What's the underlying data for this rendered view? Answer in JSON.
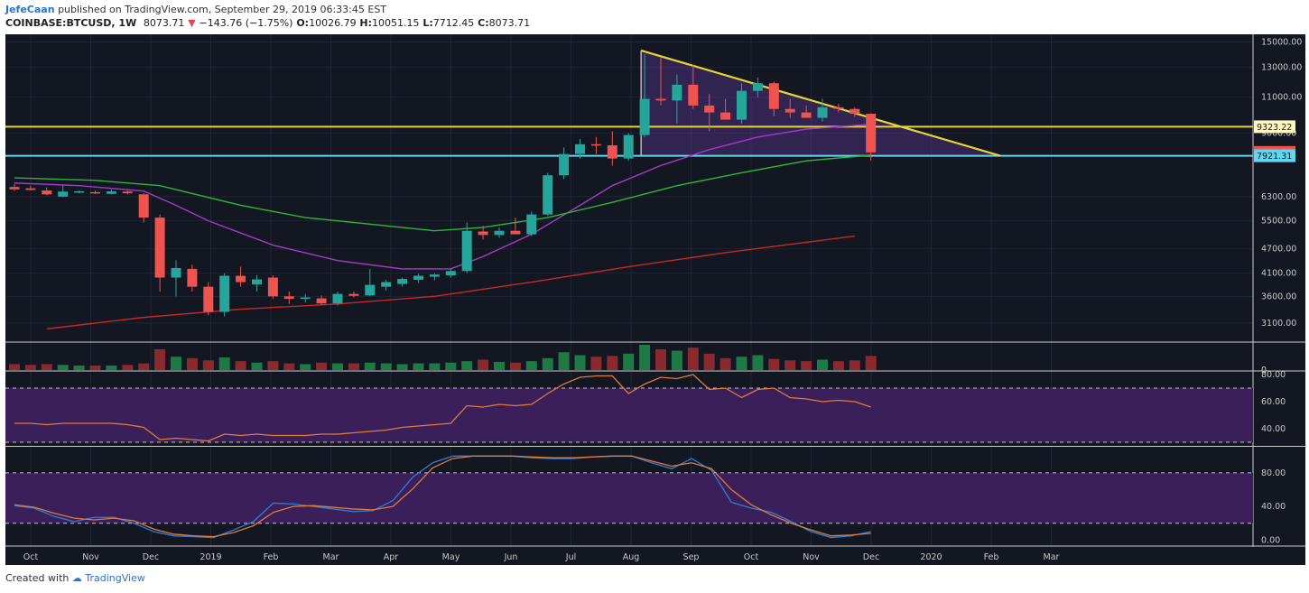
{
  "header": {
    "author": "JefeCaan",
    "published": "published on TradingView.com, September 29, 2019 06:33:45 EST",
    "symbol": "COINBASE:BTCUSD, 1W",
    "last": "8073.71",
    "change": "−143.76 (−1.75%)",
    "o_label": "O:",
    "o_value": "10026.79",
    "h_label": "H:",
    "h_value": "10051.15",
    "l_label": "L:",
    "l_value": "7712.45",
    "c_label": "C:",
    "c_value": "8073.71"
  },
  "footer": {
    "created_with": "Created with",
    "brand": "TradingView"
  },
  "colors": {
    "background": "#131722",
    "up": "#26a69a",
    "down": "#ef5350",
    "resistance": "#e6d33c",
    "support": "#5fd7f0",
    "ma_fast": "#a23cc8",
    "ma_mid": "#2fb53c",
    "ma_slow": "#c82828",
    "rsi": "#e07b3c",
    "stoch_k": "#2f7fd8",
    "stoch_d": "#e07b3c",
    "band": "#3a1f5a"
  },
  "chart_data": [
    {
      "type": "candlestick",
      "symbol": "COINBASE:BTCUSD",
      "interval": "1W",
      "y_scale": "log",
      "ylim": [
        2800,
        15500
      ],
      "y_ticks": [
        "3100.00",
        "3600.00",
        "4100.00",
        "4700.00",
        "5500.00",
        "6300.00",
        "9000.00",
        "11000.00",
        "13000.00",
        "15000.00"
      ],
      "x_ticks": [
        "Oct",
        "Nov",
        "Dec",
        "2019",
        "Feb",
        "Mar",
        "Apr",
        "May",
        "Jun",
        "Jul",
        "Aug",
        "Sep",
        "Oct",
        "Nov",
        "Dec",
        "2020",
        "Feb",
        "Mar"
      ],
      "candles": [
        {
          "o": 6650,
          "h": 6760,
          "l": 6500,
          "c": 6560
        },
        {
          "o": 6600,
          "h": 6700,
          "l": 6520,
          "c": 6540
        },
        {
          "o": 6520,
          "h": 6630,
          "l": 6350,
          "c": 6380
        },
        {
          "o": 6300,
          "h": 6720,
          "l": 6280,
          "c": 6480
        },
        {
          "o": 6470,
          "h": 6520,
          "l": 6420,
          "c": 6490
        },
        {
          "o": 6460,
          "h": 6510,
          "l": 6400,
          "c": 6420
        },
        {
          "o": 6400,
          "h": 6560,
          "l": 6380,
          "c": 6490
        },
        {
          "o": 6480,
          "h": 6520,
          "l": 6380,
          "c": 6420
        },
        {
          "o": 6380,
          "h": 6420,
          "l": 5450,
          "c": 5600
        },
        {
          "o": 5600,
          "h": 5700,
          "l": 3700,
          "c": 4000
        },
        {
          "o": 4000,
          "h": 4410,
          "l": 3600,
          "c": 4220
        },
        {
          "o": 4200,
          "h": 4300,
          "l": 3700,
          "c": 3800
        },
        {
          "o": 3800,
          "h": 3900,
          "l": 3240,
          "c": 3300
        },
        {
          "o": 3300,
          "h": 4100,
          "l": 3220,
          "c": 4040
        },
        {
          "o": 4040,
          "h": 4250,
          "l": 3800,
          "c": 3900
        },
        {
          "o": 3850,
          "h": 4060,
          "l": 3700,
          "c": 3960
        },
        {
          "o": 4000,
          "h": 4050,
          "l": 3550,
          "c": 3600
        },
        {
          "o": 3600,
          "h": 3700,
          "l": 3450,
          "c": 3550
        },
        {
          "o": 3550,
          "h": 3650,
          "l": 3480,
          "c": 3580
        },
        {
          "o": 3560,
          "h": 3620,
          "l": 3430,
          "c": 3460
        },
        {
          "o": 3460,
          "h": 3700,
          "l": 3420,
          "c": 3650
        },
        {
          "o": 3650,
          "h": 3700,
          "l": 3580,
          "c": 3610
        },
        {
          "o": 3620,
          "h": 4200,
          "l": 3600,
          "c": 3840
        },
        {
          "o": 3800,
          "h": 3950,
          "l": 3720,
          "c": 3900
        },
        {
          "o": 3860,
          "h": 4000,
          "l": 3800,
          "c": 3970
        },
        {
          "o": 3950,
          "h": 4090,
          "l": 3880,
          "c": 4040
        },
        {
          "o": 4020,
          "h": 4100,
          "l": 3940,
          "c": 4070
        },
        {
          "o": 4050,
          "h": 4200,
          "l": 4000,
          "c": 4150
        },
        {
          "o": 4150,
          "h": 5450,
          "l": 4100,
          "c": 5200
        },
        {
          "o": 5180,
          "h": 5350,
          "l": 4950,
          "c": 5080
        },
        {
          "o": 5080,
          "h": 5300,
          "l": 5000,
          "c": 5200
        },
        {
          "o": 5200,
          "h": 5600,
          "l": 5130,
          "c": 5100
        },
        {
          "o": 5100,
          "h": 5800,
          "l": 5050,
          "c": 5700
        },
        {
          "o": 5700,
          "h": 7200,
          "l": 5650,
          "c": 7100
        },
        {
          "o": 7100,
          "h": 8300,
          "l": 6950,
          "c": 8000
        },
        {
          "o": 8000,
          "h": 8700,
          "l": 7800,
          "c": 8450
        },
        {
          "o": 8450,
          "h": 8800,
          "l": 8000,
          "c": 8400
        },
        {
          "o": 8400,
          "h": 9100,
          "l": 7500,
          "c": 7800
        },
        {
          "o": 7800,
          "h": 9000,
          "l": 7700,
          "c": 8900
        },
        {
          "o": 8900,
          "h": 14000,
          "l": 8800,
          "c": 10900
        },
        {
          "o": 10900,
          "h": 13800,
          "l": 10500,
          "c": 10800
        },
        {
          "o": 10800,
          "h": 12500,
          "l": 9500,
          "c": 11800
        },
        {
          "o": 11800,
          "h": 13200,
          "l": 10300,
          "c": 10500
        },
        {
          "o": 10500,
          "h": 11200,
          "l": 9100,
          "c": 10100
        },
        {
          "o": 10100,
          "h": 10900,
          "l": 9700,
          "c": 9700
        },
        {
          "o": 9700,
          "h": 11900,
          "l": 9500,
          "c": 11400
        },
        {
          "o": 11400,
          "h": 12300,
          "l": 11000,
          "c": 11900
        },
        {
          "o": 11900,
          "h": 12000,
          "l": 9900,
          "c": 10300
        },
        {
          "o": 10300,
          "h": 10900,
          "l": 9800,
          "c": 10100
        },
        {
          "o": 10100,
          "h": 10500,
          "l": 9900,
          "c": 9800
        },
        {
          "o": 9800,
          "h": 10900,
          "l": 9600,
          "c": 10400
        },
        {
          "o": 10400,
          "h": 10600,
          "l": 10100,
          "c": 10300
        },
        {
          "o": 10300,
          "h": 10400,
          "l": 9850,
          "c": 10026.79
        },
        {
          "o": 10026.79,
          "h": 10051.15,
          "l": 7712.45,
          "c": 8073.71
        }
      ],
      "horizontal_levels": [
        {
          "value": 9323.22,
          "label": "9323.22",
          "color": "#e6d33c"
        },
        {
          "value": 7921.31,
          "label": "7921.31",
          "color": "#5fd7f0"
        }
      ],
      "last_price": {
        "value": 8073.71,
        "label": "8073.71"
      },
      "descending_triangle": {
        "top_start": 14300,
        "top_end": 7921.31,
        "base": 7921.31,
        "start_index": 39,
        "end_index": 61
      },
      "moving_averages": [
        {
          "color": "#a23cc8",
          "values": [
            [
              0,
              6800
            ],
            [
              4,
              6700
            ],
            [
              8,
              6500
            ],
            [
              10,
              6000
            ],
            [
              12,
              5500
            ],
            [
              16,
              4800
            ],
            [
              20,
              4400
            ],
            [
              24,
              4200
            ],
            [
              27,
              4200
            ],
            [
              29,
              4500
            ],
            [
              32,
              5100
            ],
            [
              35,
              6000
            ],
            [
              37,
              6700
            ],
            [
              40,
              7500
            ],
            [
              43,
              8200
            ],
            [
              46,
              8800
            ],
            [
              49,
              9200
            ],
            [
              53,
              9450
            ]
          ]
        },
        {
          "color": "#2fb53c",
          "values": [
            [
              0,
              7000
            ],
            [
              5,
              6900
            ],
            [
              9,
              6700
            ],
            [
              14,
              6000
            ],
            [
              18,
              5600
            ],
            [
              22,
              5400
            ],
            [
              26,
              5200
            ],
            [
              29,
              5300
            ],
            [
              33,
              5600
            ],
            [
              37,
              6100
            ],
            [
              41,
              6700
            ],
            [
              45,
              7200
            ],
            [
              49,
              7700
            ],
            [
              53,
              7950
            ]
          ]
        },
        {
          "color": "#c82828",
          "values": [
            [
              2,
              3000
            ],
            [
              8,
              3200
            ],
            [
              14,
              3350
            ],
            [
              20,
              3450
            ],
            [
              26,
              3600
            ],
            [
              32,
              3900
            ],
            [
              38,
              4250
            ],
            [
              44,
              4600
            ],
            [
              48,
              4820
            ],
            [
              52,
              5050
            ]
          ]
        }
      ]
    },
    {
      "type": "bar",
      "title": "",
      "values": [
        8,
        7,
        8,
        7,
        6,
        6,
        6,
        7,
        9,
        28,
        18,
        16,
        13,
        17,
        12,
        10,
        12,
        9,
        8,
        10,
        9,
        9,
        10,
        9,
        8,
        9,
        9,
        10,
        12,
        14,
        11,
        10,
        12,
        16,
        24,
        20,
        18,
        19,
        22,
        34,
        28,
        26,
        30,
        22,
        16,
        18,
        20,
        15,
        13,
        12,
        14,
        12,
        13,
        19
      ]
    },
    {
      "type": "line",
      "ylim": [
        28,
        82
      ],
      "y_ticks": [
        "40.00",
        "60.00",
        "80.00"
      ],
      "band": [
        30,
        70
      ],
      "values": [
        44,
        44,
        43,
        44,
        44,
        44,
        44,
        43,
        41,
        32,
        33,
        32,
        31,
        36,
        35,
        36,
        35,
        35,
        35,
        36,
        36,
        37,
        38,
        39,
        41,
        42,
        43,
        44,
        57,
        56,
        58,
        57,
        58,
        66,
        73,
        78,
        79,
        79,
        66,
        73,
        78,
        77,
        80,
        69,
        70,
        63,
        69,
        70,
        63,
        62,
        60,
        61,
        60,
        56
      ]
    },
    {
      "type": "line",
      "ylim": [
        -5,
        110
      ],
      "y_ticks": [
        "0.00",
        "40.00",
        "80.00"
      ],
      "band": [
        20,
        80
      ],
      "series": [
        {
          "values": [
            41,
            38,
            28,
            22,
            27,
            27,
            20,
            10,
            5,
            4,
            3,
            12,
            22,
            44,
            43,
            40,
            37,
            34,
            35,
            47,
            75,
            92,
            100,
            100,
            100,
            100,
            98,
            97,
            97,
            99,
            100,
            100,
            92,
            85,
            97,
            83,
            45,
            38,
            33,
            22,
            10,
            3,
            5,
            10
          ]
        },
        {
          "values": [
            42,
            39,
            32,
            26,
            24,
            26,
            23,
            13,
            7,
            5,
            4,
            9,
            17,
            33,
            40,
            41,
            39,
            37,
            36,
            40,
            61,
            86,
            97,
            100,
            100,
            100,
            99,
            98,
            98,
            99,
            100,
            100,
            94,
            88,
            92,
            85,
            60,
            42,
            30,
            20,
            12,
            5,
            6,
            8
          ]
        }
      ]
    }
  ]
}
